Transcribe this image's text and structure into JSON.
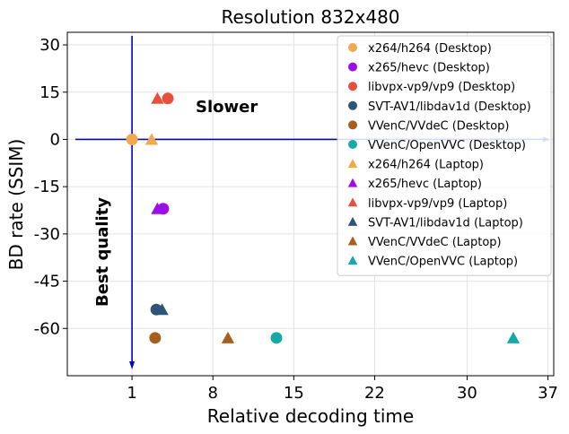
{
  "chart_data": {
    "type": "scatter",
    "title": "Resolution 832x480",
    "xlabel": "Relative decoding time",
    "ylabel": "BD rate (SSIM)",
    "xlim": [
      -4.6,
      37.5
    ],
    "ylim": [
      -75,
      34
    ],
    "xticks": [
      1,
      8,
      15,
      22,
      30,
      37
    ],
    "yticks": [
      30,
      15,
      0,
      -15,
      -30,
      -45,
      -60
    ],
    "grid": true,
    "legend_position": "top-right",
    "annotations": [
      "Slower",
      "Best quality"
    ],
    "series": [
      {
        "name": "x264/h264 (Desktop)",
        "marker": "circle",
        "color": "#f0a851",
        "points": [
          [
            1.0,
            0.0
          ]
        ]
      },
      {
        "name": "x265/hevc (Desktop)",
        "marker": "circle",
        "color": "#9b0ee8",
        "points": [
          [
            3.7,
            -22.0
          ]
        ]
      },
      {
        "name": "libvpx-vp9/vp9 (Desktop)",
        "marker": "circle",
        "color": "#e8503e",
        "points": [
          [
            4.1,
            13.0
          ]
        ]
      },
      {
        "name": "SVT-AV1/libdav1d (Desktop)",
        "marker": "circle",
        "color": "#2d5578",
        "points": [
          [
            3.1,
            -54.0
          ]
        ]
      },
      {
        "name": "VVenC/VVdeC (Desktop)",
        "marker": "circle",
        "color": "#a85f1e",
        "points": [
          [
            3.0,
            -63.0
          ]
        ]
      },
      {
        "name": "VVenC/OpenVVC (Desktop)",
        "marker": "circle",
        "color": "#17a8a8",
        "points": [
          [
            13.5,
            -63.0
          ]
        ]
      },
      {
        "name": "x264/h264 (Laptop)",
        "marker": "triangle",
        "color": "#f0a851",
        "points": [
          [
            2.7,
            0.0
          ]
        ]
      },
      {
        "name": "x265/hevc (Laptop)",
        "marker": "triangle",
        "color": "#9b0ee8",
        "points": [
          [
            3.2,
            -22.0
          ]
        ]
      },
      {
        "name": "libvpx-vp9/vp9 (Laptop)",
        "marker": "triangle",
        "color": "#e8503e",
        "points": [
          [
            3.2,
            13.0
          ]
        ]
      },
      {
        "name": "SVT-AV1/libdav1d (Laptop)",
        "marker": "triangle",
        "color": "#2d5578",
        "points": [
          [
            3.6,
            -54.0
          ]
        ]
      },
      {
        "name": "VVenC/VVdeC (Laptop)",
        "marker": "triangle",
        "color": "#a85f1e",
        "points": [
          [
            9.3,
            -63.0
          ]
        ]
      },
      {
        "name": "VVenC/OpenVVC (Laptop)",
        "marker": "triangle",
        "color": "#17a8a8",
        "points": [
          [
            34.0,
            -63.0
          ]
        ]
      }
    ],
    "reference_lines": {
      "color": "#0000cc",
      "x": 1,
      "y": 0
    }
  }
}
